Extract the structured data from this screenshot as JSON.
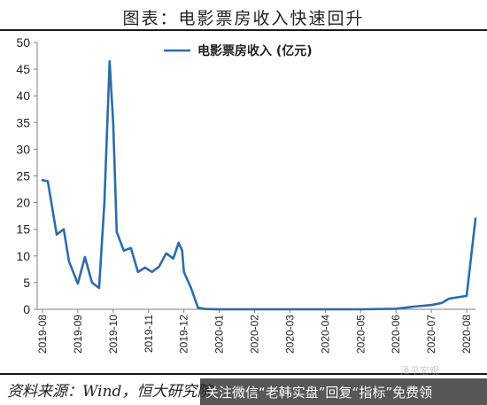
{
  "header": {
    "title": "图表：电影票房收入快速回升"
  },
  "footer": {
    "source": "资料来源：Wind，恒大研究院",
    "banner": "关注微信“老韩实盘”回复“指标”免费领",
    "watermark": "泽平宏观"
  },
  "colors": {
    "line": "#2e6ca6",
    "axis": "#7f7f7f",
    "text": "#222222"
  },
  "chart_data": {
    "type": "line",
    "title": "",
    "xlabel": "",
    "ylabel": "",
    "ylim": [
      0,
      50
    ],
    "yticks": [
      0,
      5,
      10,
      15,
      20,
      25,
      30,
      35,
      40,
      45,
      50
    ],
    "categories": [
      "2019-08",
      "2019-09",
      "2019-10",
      "2019-11",
      "2019-12",
      "2020-01",
      "2020-02",
      "2020-03",
      "2020-04",
      "2020-05",
      "2020-06",
      "2020-07",
      "2020-08"
    ],
    "grid": false,
    "legend_position": "top",
    "series": [
      {
        "name": "电影票房收入 (亿元)",
        "x": [
          0,
          0.15,
          0.4,
          0.6,
          0.75,
          1.0,
          1.2,
          1.4,
          1.6,
          1.75,
          1.9,
          2.0,
          2.05,
          2.1,
          2.3,
          2.5,
          2.7,
          2.9,
          3.1,
          3.3,
          3.5,
          3.7,
          3.85,
          3.95,
          4.0,
          4.2,
          4.4,
          4.6,
          5.0,
          5.5,
          6.0,
          6.5,
          7.0,
          7.5,
          8.0,
          9.0,
          10.0,
          10.5,
          11.0,
          11.3,
          11.5,
          12.0,
          12.25
        ],
        "values": [
          24.2,
          24.0,
          14.0,
          15.0,
          9.0,
          4.8,
          9.8,
          5.0,
          4.0,
          20.0,
          46.5,
          35.0,
          25.0,
          14.5,
          11.0,
          11.5,
          7.0,
          7.8,
          7.0,
          8.0,
          10.5,
          9.5,
          12.5,
          11.0,
          7.0,
          4.0,
          0.3,
          0.05,
          0,
          0,
          0,
          0,
          0,
          0,
          0,
          0,
          0.1,
          0.5,
          0.8,
          1.2,
          2.0,
          2.5,
          17.0
        ]
      }
    ]
  }
}
